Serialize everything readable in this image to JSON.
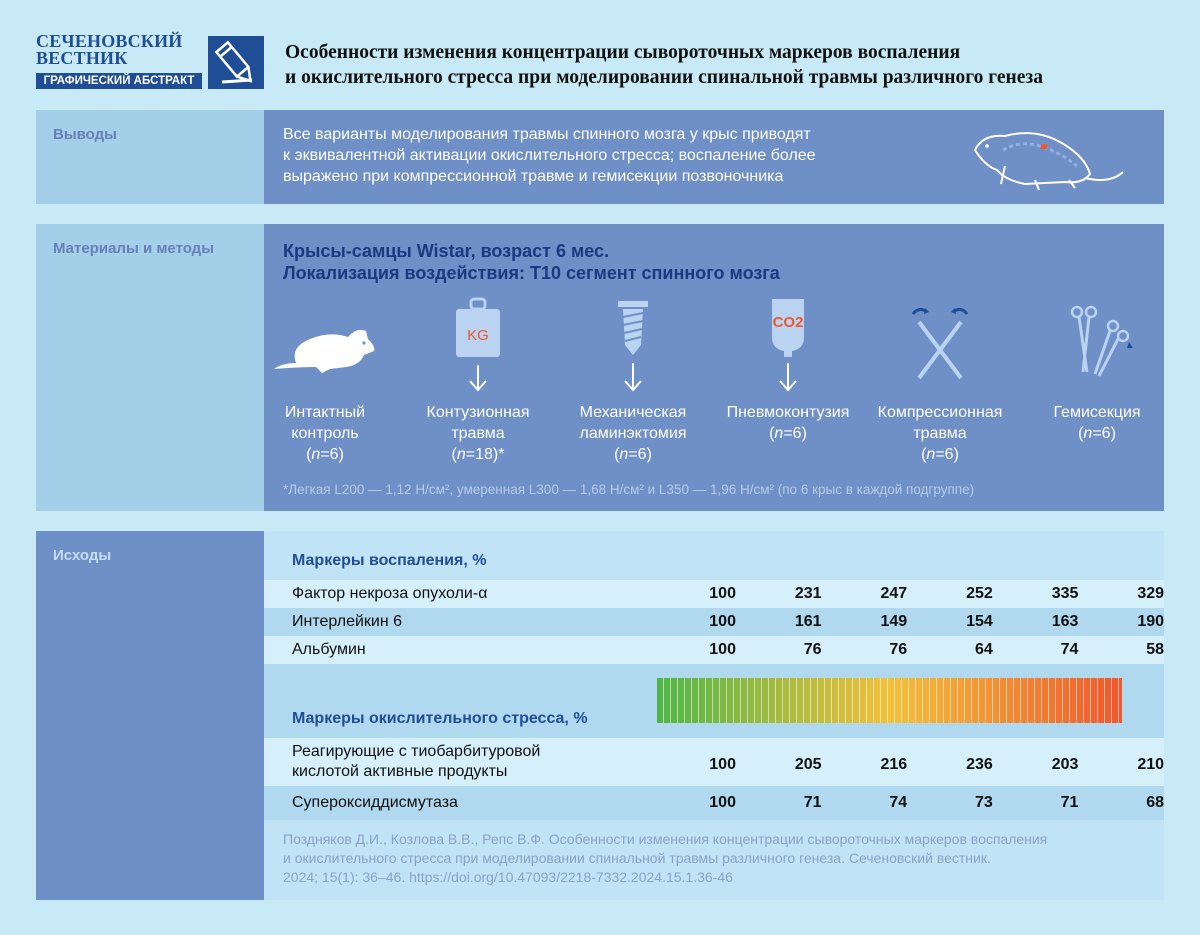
{
  "header": {
    "logo_line1": "СЕЧЕНОВСКИЙ",
    "logo_line2": "ВЕСТНИК",
    "logo_subtitle": "ГРАФИЧЕСКИЙ АБСТРАКТ",
    "logo_icon": "pencil-icon",
    "title_line1": "Особенности изменения концентрации сывороточных маркеров воспаления",
    "title_line2": "и окислительного стресса при моделировании спинальной травмы различного генеза"
  },
  "conclusions": {
    "label": "Выводы",
    "line1": "Все варианты моделирования травмы спинного мозга у крыс приводят",
    "line2": "к эквивалентной активации окислительного стресса; воспаление более",
    "line3": "выражено при компрессионной травме и гемисекции позвоночника",
    "icon": "rat-spine-icon"
  },
  "methods": {
    "label": "Материалы и методы",
    "title_line1": "Крысы-самцы Wistar, возраст 6 мес.",
    "title_line2": "Локализация воздействия: Т10 сегмент спинного мозга",
    "groups": [
      {
        "line1": "Интактный",
        "line2": "контроль",
        "n": "n",
        "count": "=6)",
        "icon": "rat-icon"
      },
      {
        "line1": "Контузионная",
        "line2": "травма",
        "n": "n",
        "count": "=18)*",
        "icon": "weight-icon",
        "icon_text": "KG"
      },
      {
        "line1": "Механическая",
        "line2": "ламинэктомия",
        "n": "n",
        "count": "=6)",
        "icon": "screw-icon"
      },
      {
        "line1": "Пневмоконтузия",
        "line2": "",
        "n": "n",
        "count": "=6)",
        "icon": "co2-balloon-icon",
        "icon_text": "CO2"
      },
      {
        "line1": "Компрессионная",
        "line2": "травма",
        "n": "n",
        "count": "=6)",
        "icon": "clamp-icon"
      },
      {
        "line1": "Гемисекция",
        "line2": "",
        "n": "n",
        "count": "=6)",
        "icon": "scissors-icon"
      }
    ],
    "footnote": "*Легкая L200 — 1,12 Н/см², умеренная L300 — 1,68 Н/см² и L350 — 1,96 Н/см²  (по 6 крыс в каждой подгруппе)"
  },
  "results": {
    "label": "Исходы",
    "inflammation_header": "Маркеры воспаления, %",
    "oxidative_header": "Маркеры окислительного стресса, %",
    "rows_inflammation": [
      {
        "name": "Фактор некроза опухоли-α",
        "values": [
          "100",
          "231",
          "247",
          "252",
          "335",
          "329"
        ]
      },
      {
        "name": "Интерлейкин 6",
        "values": [
          "100",
          "161",
          "149",
          "154",
          "163",
          "190"
        ]
      },
      {
        "name": "Альбумин",
        "values": [
          "100",
          "76",
          "76",
          "64",
          "74",
          "58"
        ]
      }
    ],
    "rows_oxidative": [
      {
        "name_line1": "Реагирующие с тиобарбитуровой",
        "name_line2": "кислотой активные продукты",
        "values": [
          "100",
          "205",
          "216",
          "236",
          "203",
          "210"
        ]
      },
      {
        "name": "Супероксиддисмутаза",
        "values": [
          "100",
          "71",
          "74",
          "73",
          "71",
          "68"
        ]
      }
    ],
    "gradient": {
      "start_color": "#4fb548",
      "mid_color": "#f3c03b",
      "end_color": "#f0572d"
    }
  },
  "reference": {
    "line1": "Поздняков Д.И., Козлова В.В., Репс В.Ф. Особенности изменения концентрации сывороточных маркеров воспаления",
    "line2": "и окислительного стресса при моделировании спинальной травмы различного генеза. Сеченовский вестник.",
    "line3": "2024; 15(1): 36–46. https://doi.org/10.47093/2218-7332.2024.15.1.36-46"
  }
}
